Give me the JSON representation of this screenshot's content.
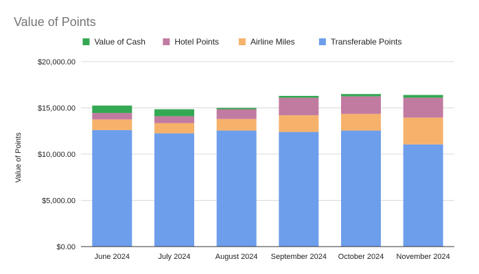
{
  "chart_data": {
    "type": "bar",
    "stacked": true,
    "title": "Value of Points",
    "xlabel": "",
    "ylabel": "Value of Points",
    "ylim": [
      0,
      20000
    ],
    "yticks": [
      0,
      5000,
      10000,
      15000,
      20000
    ],
    "ytick_labels": [
      "$0.00",
      "$5,000.00",
      "$10,000.00",
      "$15,000.00",
      "$20,000.00"
    ],
    "categories": [
      "June 2024",
      "July 2024",
      "August 2024",
      "September 2024",
      "October 2024",
      "November 2024"
    ],
    "series": [
      {
        "name": "Transferable Points",
        "color": "#6d9eeb",
        "values": [
          12600,
          12250,
          12550,
          12400,
          12550,
          11050
        ]
      },
      {
        "name": "Airline Miles",
        "color": "#f6b26b",
        "values": [
          1150,
          1100,
          1250,
          1800,
          1800,
          2900
        ]
      },
      {
        "name": "Hotel Points",
        "color": "#c27ba0",
        "values": [
          700,
          750,
          1050,
          1900,
          1900,
          2150
        ]
      },
      {
        "name": "Value of Cash",
        "color": "#34a853",
        "values": [
          800,
          750,
          150,
          200,
          250,
          300
        ]
      }
    ],
    "legend_order": [
      "Value of Cash",
      "Hotel Points",
      "Airline Miles",
      "Transferable Points"
    ],
    "legend_position": "top",
    "grid": true
  }
}
